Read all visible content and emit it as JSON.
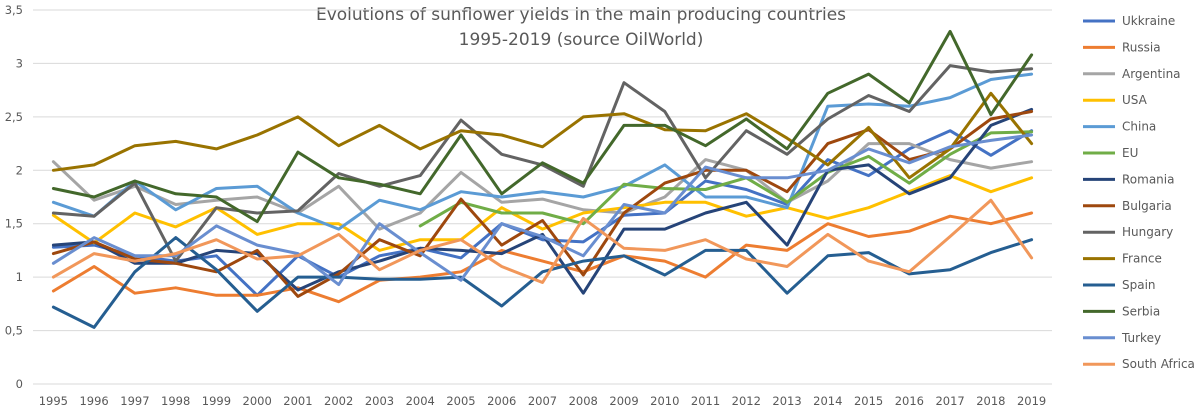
{
  "chart_data": {
    "type": "line",
    "title": "Evolutions of sunflower yields in the main producing countries",
    "subtitle": "1995-2019 (source OilWorld)",
    "xlabel": "",
    "ylabel": "",
    "ylim": [
      0,
      3.5
    ],
    "yticks": [
      "0",
      "0,5",
      "1",
      "1,5",
      "2",
      "2,5",
      "3",
      "3,5"
    ],
    "grid": true,
    "legend_position": "right",
    "x": [
      "1995",
      "1996",
      "1997",
      "1998",
      "1999",
      "2000",
      "2001",
      "2002",
      "2003",
      "2004",
      "2005",
      "2006",
      "2007",
      "2008",
      "2009",
      "2010",
      "2011",
      "2012",
      "2013",
      "2014",
      "2015",
      "2016",
      "2017",
      "2018",
      "2019"
    ],
    "series": [
      {
        "name": "Ukkraine",
        "color": "#4472c4",
        "values": [
          1.28,
          1.3,
          1.2,
          1.15,
          1.2,
          0.83,
          1.2,
          1.0,
          1.2,
          1.27,
          1.18,
          1.5,
          1.35,
          1.33,
          1.58,
          1.6,
          1.9,
          1.82,
          1.68,
          2.1,
          1.95,
          2.2,
          2.37,
          2.14,
          2.37
        ]
      },
      {
        "name": "Russia",
        "color": "#ed7d31",
        "values": [
          0.87,
          1.1,
          0.85,
          0.9,
          0.83,
          0.83,
          0.9,
          0.77,
          0.97,
          1.0,
          1.05,
          1.25,
          1.15,
          1.05,
          1.2,
          1.15,
          1.0,
          1.3,
          1.25,
          1.5,
          1.38,
          1.43,
          1.57,
          1.5,
          1.6
        ]
      },
      {
        "name": "Argentina",
        "color": "#a5a5a5",
        "values": [
          2.08,
          1.72,
          1.85,
          1.68,
          1.72,
          1.75,
          1.6,
          1.85,
          1.45,
          1.6,
          1.98,
          1.7,
          1.73,
          1.63,
          1.6,
          1.75,
          2.1,
          2.0,
          1.7,
          1.9,
          2.25,
          2.25,
          2.1,
          2.02,
          2.08
        ]
      },
      {
        "name": "USA",
        "color": "#ffc000",
        "values": [
          1.58,
          1.32,
          1.6,
          1.47,
          1.65,
          1.4,
          1.5,
          1.5,
          1.25,
          1.35,
          1.35,
          1.65,
          1.45,
          1.6,
          1.65,
          1.7,
          1.7,
          1.57,
          1.65,
          1.55,
          1.65,
          1.8,
          1.95,
          1.8,
          1.93
        ]
      },
      {
        "name": "China",
        "color": "#5b9bd5",
        "values": [
          1.7,
          1.57,
          1.9,
          1.63,
          1.83,
          1.85,
          1.6,
          1.45,
          1.72,
          1.63,
          1.8,
          1.75,
          1.8,
          1.75,
          1.85,
          2.05,
          1.75,
          1.75,
          1.65,
          2.6,
          2.62,
          2.6,
          2.68,
          2.85,
          2.9
        ]
      },
      {
        "name": "EU",
        "color": "#70ad47",
        "values": [
          null,
          null,
          null,
          null,
          null,
          null,
          null,
          null,
          null,
          1.48,
          1.7,
          1.6,
          1.6,
          1.5,
          1.87,
          1.83,
          1.82,
          1.93,
          1.7,
          1.98,
          2.13,
          1.88,
          2.15,
          2.35,
          2.36
        ]
      },
      {
        "name": "Romania",
        "color": "#264478",
        "values": [
          1.3,
          1.33,
          1.13,
          1.13,
          1.25,
          1.22,
          0.88,
          1.05,
          1.15,
          1.27,
          1.25,
          1.22,
          1.4,
          0.85,
          1.45,
          1.45,
          1.6,
          1.7,
          1.3,
          2.0,
          2.05,
          1.78,
          1.93,
          2.42,
          2.57
        ]
      },
      {
        "name": "Bulgaria",
        "color": "#9e480e",
        "values": [
          1.22,
          1.33,
          1.17,
          1.13,
          1.05,
          1.25,
          0.82,
          1.03,
          1.35,
          1.2,
          1.73,
          1.3,
          1.53,
          1.02,
          1.6,
          1.88,
          2.0,
          2.0,
          1.8,
          2.25,
          2.38,
          2.1,
          2.2,
          2.48,
          2.55
        ]
      },
      {
        "name": "Hungary",
        "color": "#636363",
        "values": [
          1.6,
          1.57,
          1.88,
          1.15,
          1.65,
          1.6,
          1.62,
          1.97,
          1.85,
          1.95,
          2.47,
          2.15,
          2.05,
          1.85,
          2.82,
          2.55,
          1.93,
          2.37,
          2.15,
          2.48,
          2.7,
          2.55,
          2.98,
          2.92,
          2.95
        ]
      },
      {
        "name": "France",
        "color": "#997300",
        "values": [
          2.0,
          2.05,
          2.23,
          2.27,
          2.2,
          2.33,
          2.5,
          2.23,
          2.42,
          2.2,
          2.37,
          2.33,
          2.22,
          2.5,
          2.53,
          2.38,
          2.37,
          2.53,
          2.3,
          2.05,
          2.4,
          1.93,
          2.2,
          2.72,
          2.25
        ]
      },
      {
        "name": "Spain",
        "color": "#255e91",
        "values": [
          0.72,
          0.53,
          1.05,
          1.37,
          1.07,
          0.68,
          1.0,
          1.0,
          0.98,
          0.98,
          1.0,
          0.73,
          1.05,
          1.15,
          1.2,
          1.02,
          1.25,
          1.25,
          0.85,
          1.2,
          1.23,
          1.03,
          1.07,
          1.23,
          1.35
        ]
      },
      {
        "name": "Serbia",
        "color": "#43682b",
        "values": [
          1.83,
          1.75,
          1.9,
          1.78,
          1.75,
          1.52,
          2.17,
          1.93,
          1.87,
          1.78,
          2.33,
          1.78,
          2.07,
          1.88,
          2.42,
          2.42,
          2.23,
          2.48,
          2.2,
          2.72,
          2.9,
          2.63,
          3.3,
          2.52,
          3.08
        ]
      },
      {
        "name": "Turkey",
        "color": "#698ed0",
        "values": [
          1.13,
          1.37,
          1.2,
          1.2,
          1.48,
          1.3,
          1.22,
          0.93,
          1.5,
          1.23,
          0.97,
          1.5,
          1.38,
          1.2,
          1.68,
          1.6,
          2.03,
          1.93,
          1.93,
          2.0,
          2.2,
          2.07,
          2.22,
          2.28,
          2.33
        ]
      },
      {
        "name": "South Africa",
        "color": "#f1975a",
        "values": [
          1.0,
          1.22,
          1.15,
          1.22,
          1.35,
          1.17,
          1.2,
          1.4,
          1.07,
          1.25,
          1.35,
          1.1,
          0.95,
          1.55,
          1.27,
          1.25,
          1.35,
          1.17,
          1.1,
          1.4,
          1.15,
          1.05,
          1.38,
          1.72,
          1.18
        ]
      }
    ]
  }
}
